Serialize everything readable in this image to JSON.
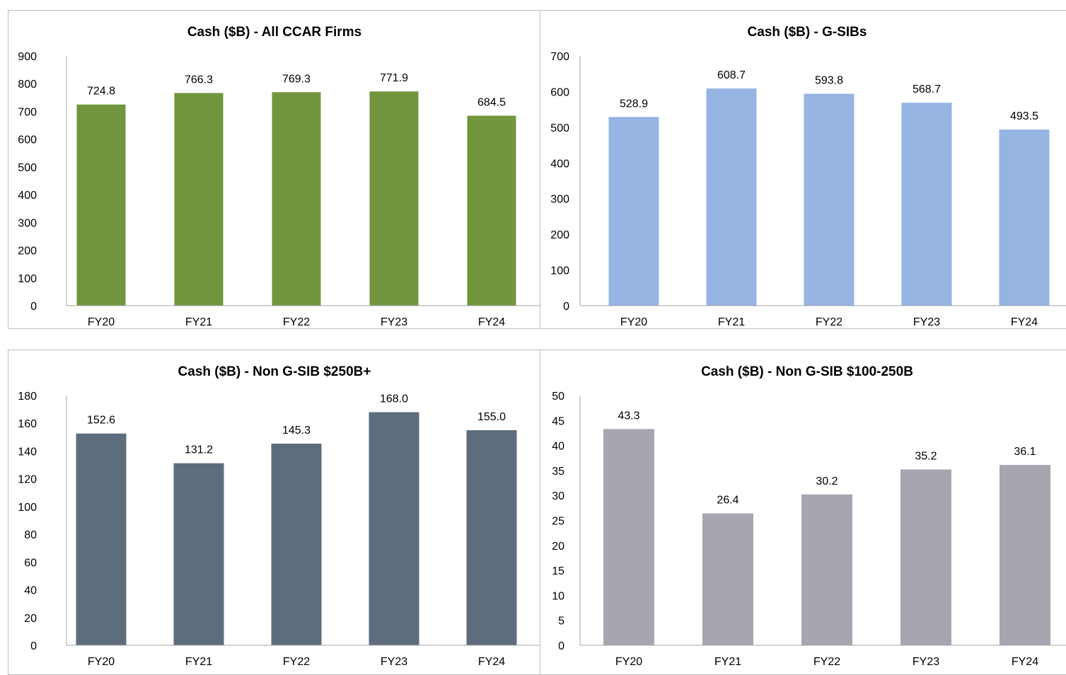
{
  "chart_data": [
    {
      "type": "bar",
      "title": "Cash ($B) - All CCAR Firms",
      "categories": [
        "FY20",
        "FY21",
        "FY22",
        "FY23",
        "FY24"
      ],
      "values": [
        724.8,
        766.3,
        769.3,
        771.9,
        684.5
      ],
      "data_labels": [
        "724.8",
        "766.3",
        "769.3",
        "771.9",
        "684.5"
      ],
      "ylim": [
        0,
        900
      ],
      "yticks": [
        "0",
        "100",
        "200",
        "300",
        "400",
        "500",
        "600",
        "700",
        "800",
        "900"
      ],
      "grid": false,
      "color": "#71963d"
    },
    {
      "type": "bar",
      "title": "Cash ($B) - G-SIBs",
      "categories": [
        "FY20",
        "FY21",
        "FY22",
        "FY23",
        "FY24"
      ],
      "values": [
        528.9,
        608.7,
        593.8,
        568.7,
        493.5
      ],
      "data_labels": [
        "528.9",
        "608.7",
        "593.8",
        "568.7",
        "493.5"
      ],
      "ylim": [
        0,
        700
      ],
      "yticks": [
        "0",
        "100",
        "200",
        "300",
        "400",
        "500",
        "600",
        "700"
      ],
      "grid": false,
      "color": "#95b4e2"
    },
    {
      "type": "bar",
      "title": "Cash ($B) - Non G-SIB $250B+",
      "categories": [
        "FY20",
        "FY21",
        "FY22",
        "FY23",
        "FY24"
      ],
      "values": [
        152.6,
        131.2,
        145.3,
        168.0,
        155.0
      ],
      "data_labels": [
        "152.6",
        "131.2",
        "145.3",
        "168.0",
        "155.0"
      ],
      "ylim": [
        0,
        180
      ],
      "yticks": [
        "0",
        "20",
        "40",
        "60",
        "80",
        "100",
        "120",
        "140",
        "160",
        "180"
      ],
      "grid": false,
      "color": "#5e6d7e"
    },
    {
      "type": "bar",
      "title": "Cash ($B) - Non G-SIB $100-250B",
      "categories": [
        "FY20",
        "FY21",
        "FY22",
        "FY23",
        "FY24"
      ],
      "values": [
        43.3,
        26.4,
        30.2,
        35.2,
        36.1
      ],
      "data_labels": [
        "43.3",
        "26.4",
        "30.2",
        "35.2",
        "36.1"
      ],
      "ylim": [
        0,
        50
      ],
      "yticks": [
        "0",
        "5",
        "10",
        "15",
        "20",
        "25",
        "30",
        "35",
        "40",
        "45",
        "50"
      ],
      "grid": false,
      "color": "#a5a6b0"
    }
  ]
}
